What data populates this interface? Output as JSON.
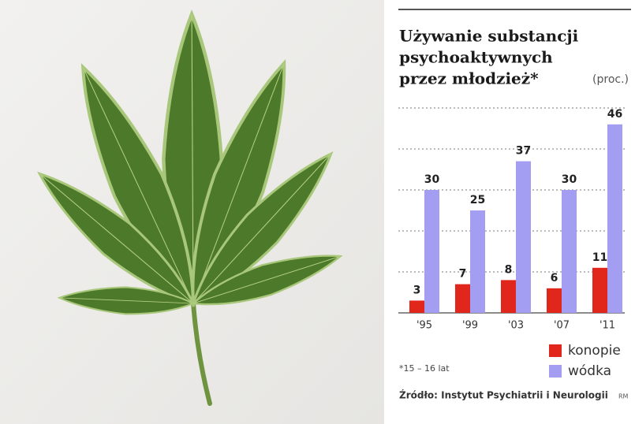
{
  "chart_data": {
    "type": "bar",
    "title": [
      "Używanie substancji",
      "psychoaktywnych",
      "przez młodzież*"
    ],
    "unit": "(proc.)",
    "categories": [
      "'95",
      "'99",
      "'03",
      "'07",
      "'11"
    ],
    "series": [
      {
        "name": "konopie",
        "color": "#e1261c",
        "values": [
          3,
          7,
          8,
          6,
          11
        ]
      },
      {
        "name": "wódka",
        "color": "#a39ef2",
        "values": [
          30,
          25,
          37,
          30,
          46
        ]
      }
    ],
    "ylim": [
      0,
      50
    ],
    "yticks": [
      10,
      20,
      30,
      40,
      50
    ],
    "grid": true,
    "footnote": "*15 – 16 lat",
    "source": "Źródło: Instytut Psychiatrii i Neurologii",
    "credit": "RM"
  }
}
